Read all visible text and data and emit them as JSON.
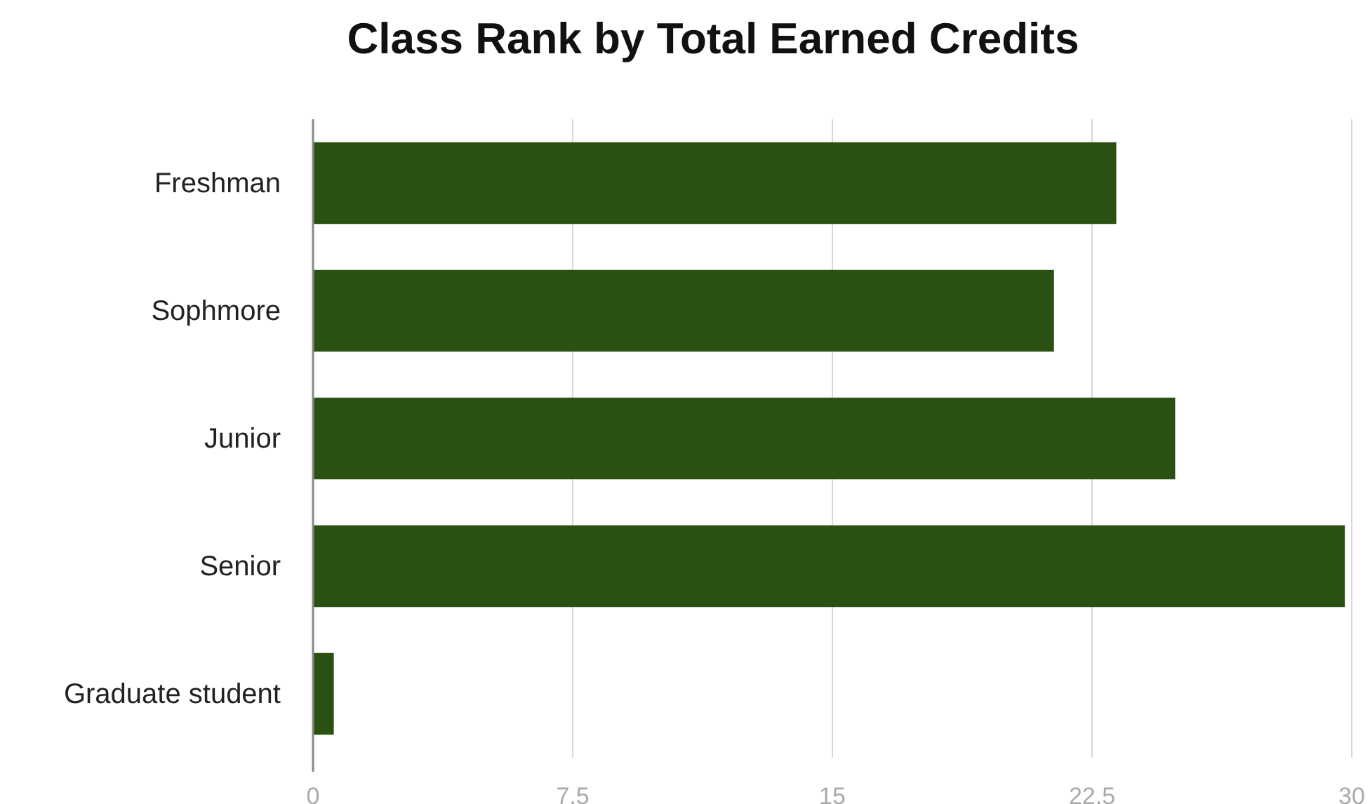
{
  "chart_data": {
    "type": "bar",
    "orientation": "horizontal",
    "title": "Class Rank by Total Earned Credits",
    "categories": [
      "Freshman",
      "Sophmore",
      "Junior",
      "Senior",
      "Graduate student"
    ],
    "values": [
      23.2,
      21.4,
      24.9,
      29.8,
      0.6
    ],
    "color": "#2a5112",
    "xlim": [
      0,
      30
    ],
    "xticks": [
      0,
      7.5,
      15,
      22.5,
      30
    ],
    "grid": "x"
  }
}
